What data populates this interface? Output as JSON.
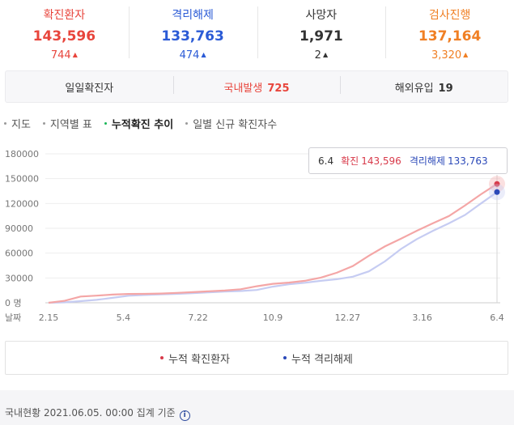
{
  "stats": [
    {
      "label": "확진환자",
      "value": "143,596",
      "delta": "744",
      "color": "#e8453c"
    },
    {
      "label": "격리해제",
      "value": "133,763",
      "delta": "474",
      "color": "#2b5bd6"
    },
    {
      "label": "사망자",
      "value": "1,971",
      "delta": "2",
      "color": "#333333"
    },
    {
      "label": "검사진행",
      "value": "137,164",
      "delta": "3,320",
      "color": "#f07f23"
    }
  ],
  "daily_bar": {
    "daily_label": "일일확진자",
    "domestic_label": "국내발생",
    "domestic_value": "725",
    "domestic_color": "#e8453c",
    "abroad_label": "해외유입",
    "abroad_value": "19"
  },
  "tabs": [
    {
      "label": "지도",
      "active": false
    },
    {
      "label": "지역별 표",
      "active": false
    },
    {
      "label": "누적확진 추이",
      "active": true
    },
    {
      "label": "일별 신규 확진자수",
      "active": false
    }
  ],
  "tooltip": {
    "date": "6.4",
    "confirmed_label": "확진",
    "confirmed_value": "143,596",
    "released_label": "격리해제",
    "released_value": "133,763"
  },
  "chart_data": {
    "type": "line",
    "y_unit_label": "명",
    "x_axis_title": "날짜",
    "ylim": [
      0,
      180000
    ],
    "y_ticks": [
      0,
      30000,
      60000,
      90000,
      120000,
      150000,
      180000
    ],
    "x_tick_labels": [
      "2.15",
      "5.4",
      "7.22",
      "10.9",
      "12.27",
      "3.16",
      "6.4"
    ],
    "grid": true,
    "series": [
      {
        "name": "누적 확진환자",
        "color": "#f4a6a6",
        "marker_color": "#d83a4a",
        "points": [
          [
            "2.15",
            28
          ],
          [
            "2.28",
            2337
          ],
          [
            "3.10",
            7513
          ],
          [
            "3.20",
            8652
          ],
          [
            "4.1",
            9887
          ],
          [
            "4.20",
            10674
          ],
          [
            "5.4",
            10804
          ],
          [
            "5.20",
            11122
          ],
          [
            "6.10",
            11947
          ],
          [
            "6.30",
            12850
          ],
          [
            "7.22",
            13938
          ],
          [
            "8.10",
            14770
          ],
          [
            "8.20",
            16346
          ],
          [
            "8.31",
            19947
          ],
          [
            "9.20",
            22893
          ],
          [
            "10.9",
            24353
          ],
          [
            "10.30",
            26511
          ],
          [
            "11.20",
            30403
          ],
          [
            "12.5",
            36332
          ],
          [
            "12.15",
            44364
          ],
          [
            "12.27",
            56872
          ],
          [
            "1.10",
            68099
          ],
          [
            "1.30",
            77395
          ],
          [
            "2.20",
            87024
          ],
          [
            "3.16",
            96017
          ],
          [
            "4.5",
            104736
          ],
          [
            "4.25",
            117458
          ],
          [
            "5.15",
            131061
          ],
          [
            "6.4",
            143596
          ]
        ]
      },
      {
        "name": "누적 격리해제",
        "color": "#c6ccf2",
        "marker_color": "#2a48b8",
        "points": [
          [
            "2.15",
            0
          ],
          [
            "2.28",
            500
          ],
          [
            "3.10",
            2000
          ],
          [
            "3.20",
            3500
          ],
          [
            "4.1",
            6000
          ],
          [
            "4.20",
            8500
          ],
          [
            "5.4",
            9400
          ],
          [
            "5.20",
            10200
          ],
          [
            "6.10",
            10800
          ],
          [
            "6.30",
            11500
          ],
          [
            "7.22",
            12600
          ],
          [
            "8.10",
            13500
          ],
          [
            "8.20",
            14200
          ],
          [
            "8.31",
            15500
          ],
          [
            "9.20",
            19500
          ],
          [
            "10.9",
            22300
          ],
          [
            "10.30",
            24200
          ],
          [
            "11.20",
            26500
          ],
          [
            "12.5",
            28500
          ],
          [
            "12.15",
            31500
          ],
          [
            "12.27",
            38000
          ],
          [
            "1.10",
            50000
          ],
          [
            "1.30",
            65000
          ],
          [
            "2.20",
            77000
          ],
          [
            "3.16",
            87000
          ],
          [
            "4.5",
            96000
          ],
          [
            "4.25",
            106000
          ],
          [
            "5.15",
            120000
          ],
          [
            "6.4",
            133763
          ]
        ]
      }
    ]
  },
  "legend": {
    "confirmed": "누적 확진환자",
    "released": "누적 격리해제"
  },
  "footer": {
    "text": "국내현황 2021.06.05. 00:00 집계 기준",
    "info_icon": "i"
  }
}
